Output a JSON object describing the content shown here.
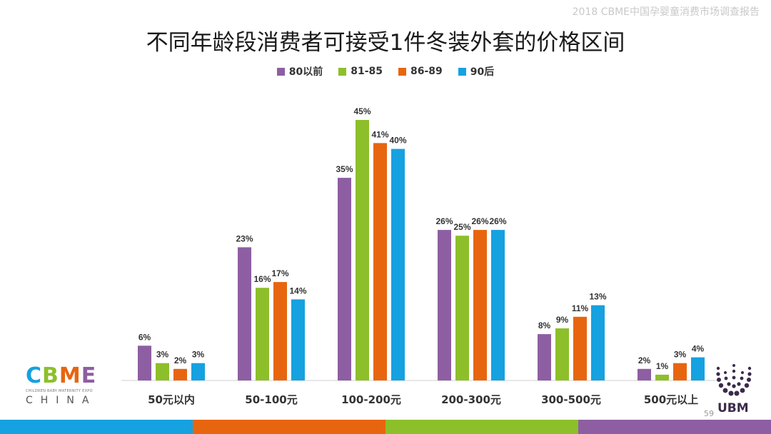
{
  "header": {
    "report_title": "2018 CBME中国孕婴童消费市场调查报告"
  },
  "page_number": "59",
  "logos": {
    "cbme_letters": [
      "C",
      "B",
      "M",
      "E"
    ],
    "cbme_tagline": "CHILDREN·BABY·MATERNITY EXPO",
    "cbme_country": "CHINA",
    "ubm": "UBM"
  },
  "colors": {
    "series": [
      "#8e5ea2",
      "#8dbf2a",
      "#e8650f",
      "#16a1e0"
    ],
    "footer": [
      "#16a1e0",
      "#e8650f",
      "#8dbf2a",
      "#8e5ea2"
    ],
    "cbme_letters": [
      "#16a1e0",
      "#8dbf2a",
      "#e8650f",
      "#8e5ea2"
    ]
  },
  "chart_data": {
    "type": "bar",
    "title": "不同年龄段消费者可接受1件冬装外套的价格区间",
    "categories": [
      "50元以内",
      "50-100元",
      "100-200元",
      "200-300元",
      "300-500元",
      "500元以上"
    ],
    "series": [
      {
        "name": "80以前",
        "values": [
          6,
          23,
          35,
          26,
          8,
          2
        ]
      },
      {
        "name": "81-85",
        "values": [
          3,
          16,
          45,
          25,
          9,
          1
        ]
      },
      {
        "name": "86-89",
        "values": [
          2,
          17,
          41,
          26,
          11,
          3
        ]
      },
      {
        "name": "90后",
        "values": [
          3,
          14,
          40,
          26,
          13,
          4
        ]
      }
    ],
    "value_suffix": "%",
    "ylim": [
      0,
      45
    ],
    "grid": false,
    "legend_position": "top",
    "xlabel": "",
    "ylabel": ""
  }
}
